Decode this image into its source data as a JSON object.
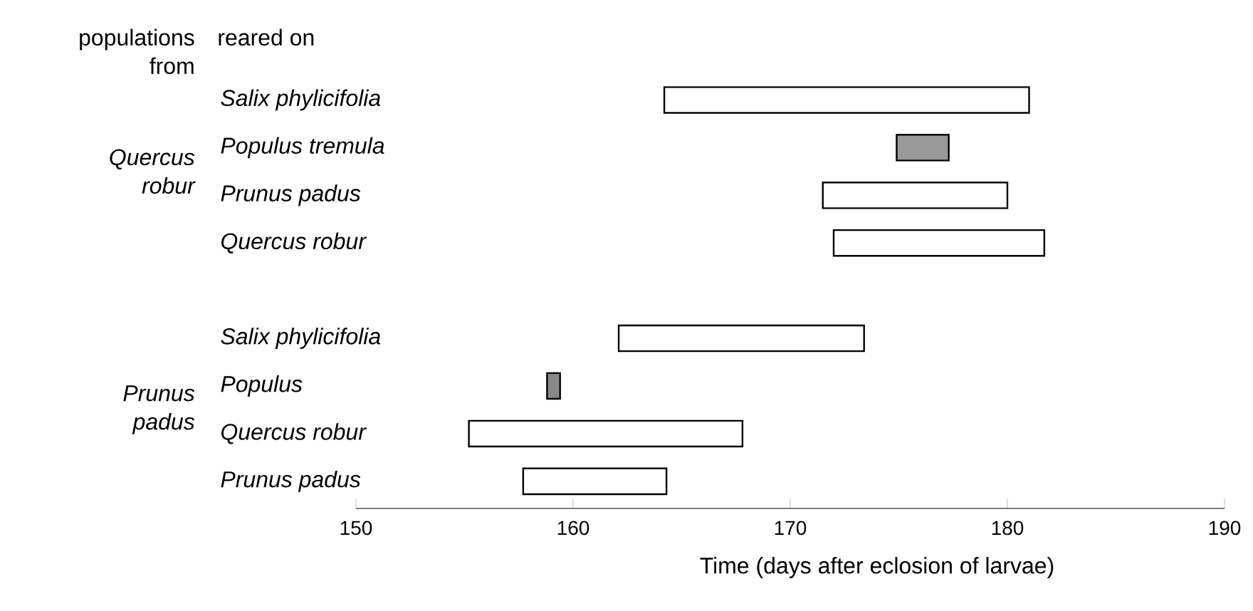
{
  "chart_data": {
    "type": "bar",
    "orientation": "horizontal",
    "categories": [
      "Salix phylicifolia",
      "Populus tremula",
      "Prunus padus",
      "Quercus robur",
      null,
      "Salix phylicifolia",
      "Populus",
      "Quercus robur",
      "Prunus padus"
    ],
    "base": [
      164.2,
      174.9,
      171.5,
      172.0,
      null,
      162.1,
      158.8,
      155.2,
      157.7
    ],
    "values": [
      16.8,
      2.4,
      8.5,
      9.7,
      null,
      11.3,
      0.6,
      12.6,
      6.6
    ],
    "colors": [
      "#ffffff",
      "#999999",
      "#ffffff",
      "#ffffff",
      "#ffffff",
      "#ffffff",
      "#888888",
      "#ffffff",
      "#ffffff"
    ],
    "xlabel": "Time (days after eclosion of larvae)",
    "xlim": [
      150,
      190
    ],
    "xticks": [
      150,
      160,
      170,
      180,
      190
    ],
    "annotations": [
      "populations from",
      "reared on",
      "Quercus robur",
      "Prunus padus"
    ]
  }
}
